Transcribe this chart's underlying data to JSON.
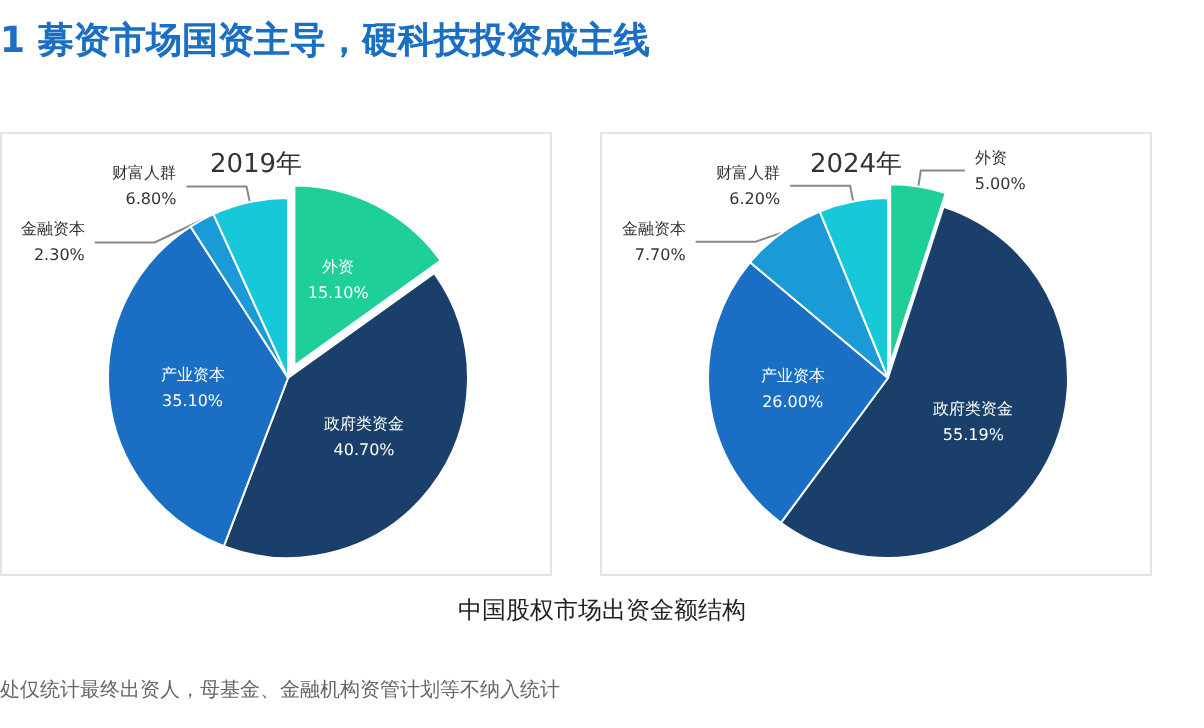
{
  "chart_data": [
    {
      "type": "pie",
      "title": "2019年",
      "categories": [
        "外资",
        "政府类资金",
        "产业资本",
        "金融资本",
        "财富人群"
      ],
      "values": [
        15.1,
        40.7,
        35.1,
        2.3,
        6.8
      ],
      "value_labels": [
        "15.10%",
        "40.70%",
        "35.10%",
        "2.30%",
        "6.80%"
      ],
      "colors": [
        "#1ecf9a",
        "#1a3f6b",
        "#1a6fc4",
        "#1a9ad6",
        "#16c8d8"
      ],
      "legend": false,
      "annotations": [
        "1 募资市场国资主导，硬科技投资成主线",
        "中国股权市场出资金额结构",
        "处仅统计最终出资人，母基金、金融机构资管计划等不纳入统计"
      ]
    },
    {
      "type": "pie",
      "title": "2024年",
      "categories": [
        "外资",
        "政府类资金",
        "产业资本",
        "金融资本",
        "财富人群"
      ],
      "values": [
        5.0,
        55.19,
        26.0,
        7.7,
        6.2
      ],
      "value_labels": [
        "5.00%",
        "55.19%",
        "26.00%",
        "7.70%",
        "6.20%"
      ],
      "colors": [
        "#1ecf9a",
        "#1a3f6b",
        "#1a6fc4",
        "#1a9ad6",
        "#16c8d8"
      ],
      "legend": false
    }
  ]
}
